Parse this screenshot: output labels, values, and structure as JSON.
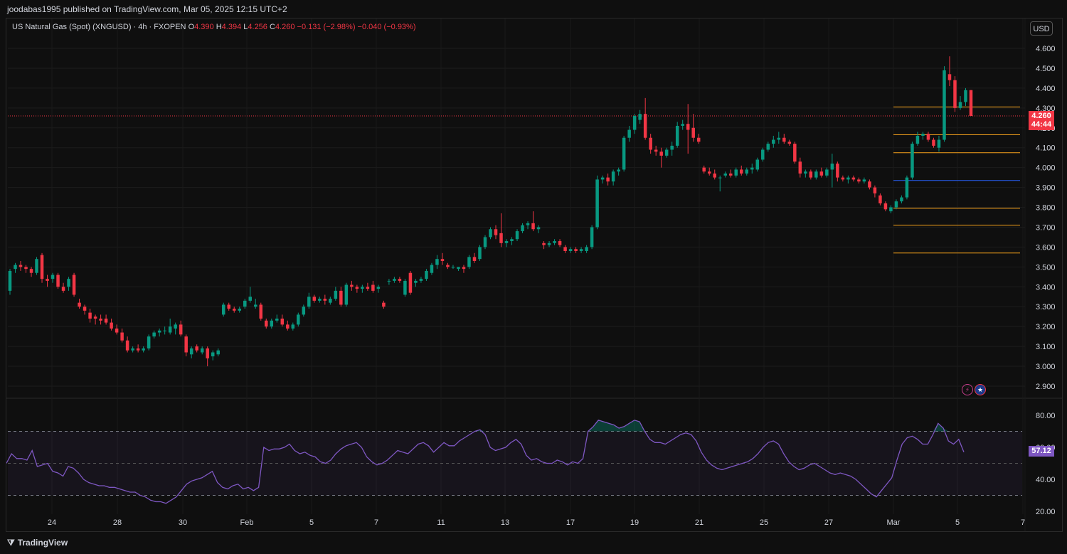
{
  "header": {
    "publish_line": "joodabas1995 published on TradingView.com, Mar 05, 2025 12:15 UTC+2"
  },
  "legend": {
    "symbol": "US Natural Gas (Spot) (XNGUSD) · 4h · FXOPEN",
    "o_label": "O",
    "o_value": "4.390",
    "h_label": "H",
    "h_value": "4.394",
    "l_label": "L",
    "l_value": "4.256",
    "c_label": "C",
    "c_value": "4.260",
    "change": "−0.131 (−2.98%)",
    "change2": "−0.040 (−0.93%)"
  },
  "currency_button": "USD",
  "last_price": {
    "price": "4.260",
    "countdown": "44:44"
  },
  "rsi_value": "57.12",
  "footer": {
    "brand": "TradingView",
    "brand_icon": "tv-logo-icon"
  },
  "colors": {
    "up": "#089981",
    "down": "#f23645",
    "rsi": "#7e57c2",
    "level_orange": "#f7a21b",
    "level_blue": "#2962ff",
    "background": "#0f0f0f"
  },
  "chart_data": {
    "type": "candlestick",
    "title": "US Natural Gas (Spot) (XNGUSD) · 4h · FXOPEN",
    "price_ticks": [
      "4.600",
      "4.500",
      "4.400",
      "4.300",
      "4.200",
      "4.100",
      "4.000",
      "3.900",
      "3.800",
      "3.700",
      "3.600",
      "3.500",
      "3.400",
      "3.300",
      "3.200",
      "3.100",
      "3.000",
      "2.900"
    ],
    "ylim": [
      2.86,
      4.72
    ],
    "x_labels": [
      "24",
      "28",
      "30",
      "Feb",
      "5",
      "7",
      "11",
      "13",
      "17",
      "19",
      "21",
      "25",
      "27",
      "Mar",
      "5",
      "7"
    ],
    "candles": [
      [
        3.38,
        3.49,
        3.36,
        3.48
      ],
      [
        3.49,
        3.52,
        3.47,
        3.51
      ],
      [
        3.51,
        3.53,
        3.48,
        3.5
      ],
      [
        3.5,
        3.51,
        3.47,
        3.49
      ],
      [
        3.49,
        3.5,
        3.45,
        3.47
      ],
      [
        3.47,
        3.55,
        3.46,
        3.54
      ],
      [
        3.56,
        3.57,
        3.42,
        3.44
      ],
      [
        3.44,
        3.46,
        3.4,
        3.43
      ],
      [
        3.44,
        3.47,
        3.42,
        3.46
      ],
      [
        3.46,
        3.47,
        3.39,
        3.4
      ],
      [
        3.4,
        3.42,
        3.37,
        3.38
      ],
      [
        3.4,
        3.45,
        3.38,
        3.44
      ],
      [
        3.46,
        3.47,
        3.35,
        3.36
      ],
      [
        3.32,
        3.34,
        3.29,
        3.3
      ],
      [
        3.3,
        3.31,
        3.26,
        3.28
      ],
      [
        3.27,
        3.29,
        3.22,
        3.24
      ],
      [
        3.25,
        3.26,
        3.21,
        3.24
      ],
      [
        3.24,
        3.26,
        3.21,
        3.23
      ],
      [
        3.24,
        3.26,
        3.21,
        3.22
      ],
      [
        3.22,
        3.24,
        3.18,
        3.19
      ],
      [
        3.19,
        3.21,
        3.16,
        3.17
      ],
      [
        3.17,
        3.19,
        3.12,
        3.13
      ],
      [
        3.13,
        3.15,
        3.07,
        3.08
      ],
      [
        3.08,
        3.1,
        3.07,
        3.09
      ],
      [
        3.09,
        3.11,
        3.07,
        3.08
      ],
      [
        3.08,
        3.1,
        3.07,
        3.09
      ],
      [
        3.09,
        3.16,
        3.08,
        3.15
      ],
      [
        3.15,
        3.18,
        3.14,
        3.17
      ],
      [
        3.17,
        3.19,
        3.15,
        3.18
      ],
      [
        3.18,
        3.2,
        3.16,
        3.18
      ],
      [
        3.17,
        3.24,
        3.16,
        3.2
      ],
      [
        3.19,
        3.22,
        3.16,
        3.21
      ],
      [
        3.21,
        3.23,
        3.15,
        3.16
      ],
      [
        3.15,
        3.16,
        3.05,
        3.07
      ],
      [
        3.06,
        3.1,
        3.04,
        3.09
      ],
      [
        3.1,
        3.11,
        3.07,
        3.08
      ],
      [
        3.07,
        3.1,
        3.06,
        3.09
      ],
      [
        3.09,
        3.1,
        3.0,
        3.04
      ],
      [
        3.05,
        3.08,
        3.03,
        3.07
      ],
      [
        3.06,
        3.09,
        3.05,
        3.08
      ],
      [
        3.26,
        3.32,
        3.25,
        3.31
      ],
      [
        3.31,
        3.32,
        3.28,
        3.29
      ],
      [
        3.29,
        3.3,
        3.27,
        3.28
      ],
      [
        3.28,
        3.3,
        3.27,
        3.29
      ],
      [
        3.3,
        3.34,
        3.29,
        3.33
      ],
      [
        3.33,
        3.4,
        3.32,
        3.35
      ],
      [
        3.3,
        3.34,
        3.29,
        3.31
      ],
      [
        3.31,
        3.32,
        3.23,
        3.24
      ],
      [
        3.23,
        3.24,
        3.19,
        3.2
      ],
      [
        3.2,
        3.24,
        3.19,
        3.23
      ],
      [
        3.23,
        3.26,
        3.22,
        3.24
      ],
      [
        3.24,
        3.26,
        3.2,
        3.21
      ],
      [
        3.21,
        3.23,
        3.18,
        3.19
      ],
      [
        3.19,
        3.22,
        3.18,
        3.21
      ],
      [
        3.21,
        3.27,
        3.2,
        3.26
      ],
      [
        3.26,
        3.31,
        3.25,
        3.3
      ],
      [
        3.3,
        3.37,
        3.29,
        3.35
      ],
      [
        3.35,
        3.36,
        3.32,
        3.33
      ],
      [
        3.33,
        3.35,
        3.32,
        3.34
      ],
      [
        3.34,
        3.36,
        3.31,
        3.33
      ],
      [
        3.32,
        3.35,
        3.31,
        3.34
      ],
      [
        3.34,
        3.4,
        3.33,
        3.38
      ],
      [
        3.38,
        3.4,
        3.3,
        3.31
      ],
      [
        3.31,
        3.42,
        3.3,
        3.41
      ],
      [
        3.41,
        3.43,
        3.38,
        3.4
      ],
      [
        3.4,
        3.41,
        3.37,
        3.39
      ],
      [
        3.39,
        3.41,
        3.37,
        3.4
      ],
      [
        3.4,
        3.42,
        3.38,
        3.39
      ],
      [
        3.41,
        3.43,
        3.37,
        3.38
      ],
      [
        3.39,
        3.41,
        3.37,
        3.4
      ],
      [
        3.32,
        3.33,
        3.29,
        3.3
      ],
      [
        3.43,
        3.44,
        3.41,
        3.43
      ],
      [
        3.43,
        3.45,
        3.42,
        3.44
      ],
      [
        3.44,
        3.45,
        3.42,
        3.43
      ],
      [
        3.36,
        3.44,
        3.35,
        3.43
      ],
      [
        3.47,
        3.48,
        3.36,
        3.37
      ],
      [
        3.42,
        3.44,
        3.4,
        3.43
      ],
      [
        3.43,
        3.45,
        3.42,
        3.44
      ],
      [
        3.44,
        3.49,
        3.43,
        3.48
      ],
      [
        3.47,
        3.52,
        3.46,
        3.51
      ],
      [
        3.51,
        3.56,
        3.49,
        3.54
      ],
      [
        3.54,
        3.57,
        3.51,
        3.53
      ],
      [
        3.51,
        3.52,
        3.49,
        3.5
      ],
      [
        3.5,
        3.51,
        3.49,
        3.5
      ],
      [
        3.49,
        3.5,
        3.48,
        3.5
      ],
      [
        3.5,
        3.51,
        3.47,
        3.49
      ],
      [
        3.5,
        3.56,
        3.49,
        3.55
      ],
      [
        3.55,
        3.57,
        3.52,
        3.53
      ],
      [
        3.54,
        3.61,
        3.53,
        3.6
      ],
      [
        3.6,
        3.66,
        3.59,
        3.65
      ],
      [
        3.65,
        3.7,
        3.64,
        3.69
      ],
      [
        3.69,
        3.71,
        3.64,
        3.66
      ],
      [
        3.67,
        3.77,
        3.6,
        3.62
      ],
      [
        3.62,
        3.64,
        3.6,
        3.63
      ],
      [
        3.63,
        3.65,
        3.61,
        3.64
      ],
      [
        3.64,
        3.69,
        3.63,
        3.68
      ],
      [
        3.68,
        3.72,
        3.67,
        3.71
      ],
      [
        3.71,
        3.73,
        3.69,
        3.72
      ],
      [
        3.72,
        3.78,
        3.68,
        3.69
      ],
      [
        3.69,
        3.71,
        3.67,
        3.7
      ],
      [
        3.62,
        3.63,
        3.59,
        3.61
      ],
      [
        3.61,
        3.63,
        3.6,
        3.62
      ],
      [
        3.62,
        3.64,
        3.61,
        3.63
      ],
      [
        3.63,
        3.64,
        3.6,
        3.61
      ],
      [
        3.6,
        3.61,
        3.57,
        3.58
      ],
      [
        3.58,
        3.6,
        3.57,
        3.59
      ],
      [
        3.59,
        3.6,
        3.57,
        3.58
      ],
      [
        3.58,
        3.6,
        3.57,
        3.59
      ],
      [
        3.58,
        3.61,
        3.57,
        3.6
      ],
      [
        3.6,
        3.71,
        3.59,
        3.7
      ],
      [
        3.7,
        3.96,
        3.69,
        3.94
      ],
      [
        3.94,
        3.96,
        3.92,
        3.95
      ],
      [
        3.95,
        3.97,
        3.91,
        3.93
      ],
      [
        3.93,
        3.99,
        3.91,
        3.98
      ],
      [
        3.98,
        4.0,
        3.96,
        3.99
      ],
      [
        3.99,
        4.16,
        3.98,
        4.15
      ],
      [
        4.15,
        4.21,
        4.13,
        4.19
      ],
      [
        4.19,
        4.27,
        4.17,
        4.26
      ],
      [
        4.24,
        4.29,
        4.22,
        4.27
      ],
      [
        4.27,
        4.35,
        4.14,
        4.15
      ],
      [
        4.15,
        4.17,
        4.07,
        4.09
      ],
      [
        4.09,
        4.11,
        4.06,
        4.08
      ],
      [
        4.08,
        4.1,
        4.0,
        4.06
      ],
      [
        4.06,
        4.1,
        4.05,
        4.09
      ],
      [
        4.09,
        4.13,
        4.06,
        4.11
      ],
      [
        4.11,
        4.23,
        4.1,
        4.21
      ],
      [
        4.21,
        4.24,
        4.19,
        4.22
      ],
      [
        4.22,
        4.32,
        4.07,
        4.19
      ],
      [
        4.2,
        4.27,
        4.13,
        4.15
      ],
      [
        4.15,
        4.17,
        4.12,
        4.13
      ],
      [
        4.0,
        4.01,
        3.97,
        3.98
      ],
      [
        3.98,
        4.0,
        3.96,
        3.97
      ],
      [
        3.97,
        3.99,
        3.94,
        3.95
      ],
      [
        3.95,
        3.96,
        3.88,
        3.95
      ],
      [
        3.96,
        3.98,
        3.95,
        3.97
      ],
      [
        3.97,
        3.99,
        3.95,
        3.96
      ],
      [
        3.96,
        4.0,
        3.95,
        3.99
      ],
      [
        3.99,
        4.01,
        3.96,
        3.97
      ],
      [
        3.97,
        4.0,
        3.96,
        3.99
      ],
      [
        3.99,
        4.02,
        3.97,
        4.0
      ],
      [
        3.99,
        4.05,
        3.98,
        4.04
      ],
      [
        4.04,
        4.1,
        4.03,
        4.09
      ],
      [
        4.09,
        4.13,
        4.08,
        4.12
      ],
      [
        4.12,
        4.16,
        4.1,
        4.14
      ],
      [
        4.14,
        4.18,
        4.12,
        4.15
      ],
      [
        4.15,
        4.17,
        4.12,
        4.13
      ],
      [
        4.13,
        4.14,
        4.11,
        4.12
      ],
      [
        4.12,
        4.13,
        4.02,
        4.03
      ],
      [
        4.03,
        4.05,
        3.95,
        3.97
      ],
      [
        3.97,
        3.99,
        3.95,
        3.98
      ],
      [
        3.98,
        3.99,
        3.94,
        3.95
      ],
      [
        3.95,
        3.99,
        3.94,
        3.98
      ],
      [
        3.98,
        4.0,
        3.95,
        3.96
      ],
      [
        3.96,
        4.0,
        3.95,
        3.99
      ],
      [
        3.99,
        4.07,
        3.9,
        4.02
      ],
      [
        4.02,
        4.03,
        3.93,
        3.95
      ],
      [
        3.95,
        3.96,
        3.93,
        3.94
      ],
      [
        3.94,
        3.96,
        3.92,
        3.95
      ],
      [
        3.95,
        3.96,
        3.93,
        3.94
      ],
      [
        3.94,
        3.95,
        3.92,
        3.93
      ],
      [
        3.93,
        3.95,
        3.92,
        3.94
      ],
      [
        3.93,
        3.94,
        3.89,
        3.9
      ],
      [
        3.9,
        3.91,
        3.85,
        3.87
      ],
      [
        3.86,
        3.87,
        3.81,
        3.82
      ],
      [
        3.82,
        3.83,
        3.78,
        3.79
      ],
      [
        3.78,
        3.81,
        3.77,
        3.8
      ],
      [
        3.8,
        3.84,
        3.79,
        3.83
      ],
      [
        3.83,
        3.86,
        3.82,
        3.85
      ],
      [
        3.85,
        3.96,
        3.84,
        3.95
      ],
      [
        3.95,
        4.13,
        3.94,
        4.12
      ],
      [
        4.12,
        4.18,
        4.11,
        4.16
      ],
      [
        4.16,
        4.18,
        4.14,
        4.17
      ],
      [
        4.17,
        4.18,
        4.13,
        4.14
      ],
      [
        4.14,
        4.15,
        4.1,
        4.11
      ],
      [
        4.1,
        4.16,
        4.08,
        4.14
      ],
      [
        4.14,
        4.51,
        4.13,
        4.49
      ],
      [
        4.47,
        4.56,
        4.41,
        4.44
      ],
      [
        4.44,
        4.46,
        4.28,
        4.3
      ],
      [
        4.3,
        4.36,
        4.29,
        4.33
      ],
      [
        4.33,
        4.4,
        4.31,
        4.39
      ],
      [
        4.39,
        4.39,
        4.26,
        4.26
      ]
    ],
    "levels": [
      {
        "price": 4.305,
        "color": "#f7a21b"
      },
      {
        "price": 4.165,
        "color": "#f7a21b"
      },
      {
        "price": 4.075,
        "color": "#f7a21b"
      },
      {
        "price": 3.935,
        "color": "#2962ff"
      },
      {
        "price": 3.795,
        "color": "#f7a21b"
      },
      {
        "price": 3.71,
        "color": "#f7a21b"
      },
      {
        "price": 3.57,
        "color": "#f7a21b"
      }
    ],
    "last_price_line": 4.26,
    "rsi": {
      "ticks": [
        "80.00",
        "60.00",
        "40.00",
        "20.00"
      ],
      "ylim": [
        20,
        90
      ],
      "upper_band": 70,
      "middle": 50,
      "lower_band": 30,
      "values": [
        50,
        56,
        53,
        53,
        52,
        58,
        48,
        49,
        50,
        45,
        44,
        42,
        48,
        47,
        44,
        40,
        38,
        37,
        36,
        36,
        35,
        35,
        34,
        33,
        32,
        32,
        30,
        29,
        27,
        26,
        26,
        25,
        27,
        29,
        33,
        37,
        39,
        40,
        41,
        43,
        45,
        38,
        35,
        34,
        36,
        37,
        34,
        35,
        33,
        35,
        60,
        58,
        59,
        59,
        60,
        62,
        58,
        56,
        57,
        55,
        54,
        51,
        50,
        52,
        56,
        59,
        61,
        62,
        63,
        60,
        54,
        51,
        49,
        50,
        52,
        55,
        58,
        57,
        56,
        59,
        62,
        63,
        61,
        57,
        60,
        63,
        61,
        61,
        64,
        66,
        68,
        70,
        71,
        68,
        60,
        58,
        59,
        60,
        63,
        65,
        62,
        55,
        52,
        53,
        51,
        50,
        50,
        52,
        51,
        49,
        51,
        50,
        53,
        70,
        73,
        77,
        76,
        75,
        74,
        72,
        73,
        75,
        77,
        76,
        70,
        65,
        63,
        63,
        62,
        64,
        66,
        68,
        69,
        68,
        64,
        57,
        52,
        49,
        47,
        46,
        47,
        48,
        49,
        50,
        51,
        53,
        56,
        60,
        63,
        64,
        62,
        56,
        51,
        48,
        46,
        47,
        49,
        50,
        48,
        46,
        44,
        43,
        44,
        43,
        42,
        40,
        37,
        34,
        31,
        29,
        33,
        37,
        41,
        52,
        62,
        66,
        67,
        65,
        62,
        62,
        68,
        75,
        72,
        64,
        62,
        65,
        57
      ]
    }
  }
}
